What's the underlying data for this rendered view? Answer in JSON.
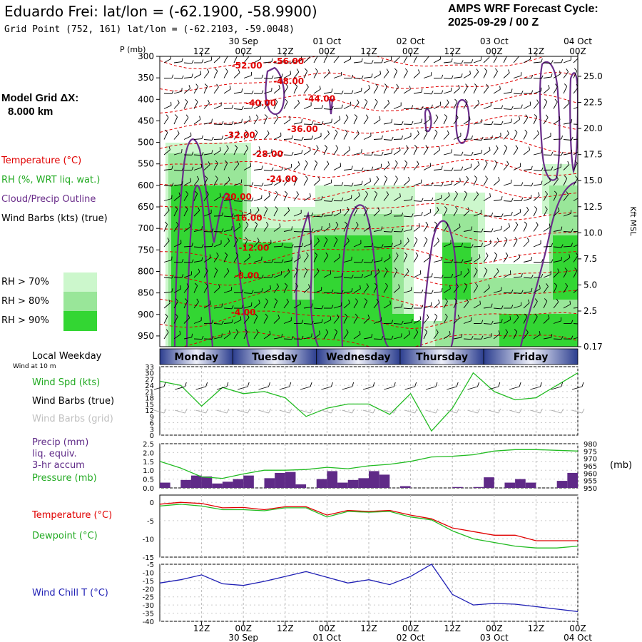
{
  "header": {
    "title": "Eduardo Frei:  lat/lon = (-62.1900, -58.9900)",
    "grid_point": "Grid Point (752, 161) lat/lon = (-62.2103, -59.0048)",
    "cycle_line1": "AMPS WRF Forecast Cycle:",
    "cycle_line2": "2025-09-29 / 00  Z"
  },
  "legend": {
    "model_grid_line1": "Model Grid ΔX:",
    "model_grid_line2": "8.000 km",
    "temperature": "Temperature (°C)",
    "rh": "RH (%, WRT liq. wat.)",
    "cloud": "Cloud/Precip Outline",
    "wind_barbs": "Wind Barbs (kts) (true)",
    "rh70": "RH > 70%",
    "rh80": "RH > 80%",
    "rh90": "RH > 90%",
    "colors": {
      "rh70": "#ccf7cc",
      "rh80": "#99e699",
      "rh90": "#33d633",
      "temperature": "#e00000",
      "cloud": "#6a2d8a",
      "precip": "#5f2a87",
      "wind_speed": "#22bb22",
      "wind_chill": "#1f1fb4"
    }
  },
  "axes": {
    "time_ticks": [
      "12Z",
      "00Z",
      "12Z",
      "00Z",
      "12Z",
      "00Z",
      "12Z",
      "00Z",
      "12Z",
      "00Z"
    ],
    "date_labels": [
      "30 Sep",
      "01 Oct",
      "02 Oct",
      "03 Oct",
      "04 Oct"
    ],
    "pressure_label": "P (mb)",
    "pressure_ticks": [
      "300",
      "350",
      "400",
      "450",
      "500",
      "550",
      "600",
      "650",
      "700",
      "750",
      "800",
      "850",
      "900",
      "950"
    ],
    "height_ticks": [
      "25.0",
      "22.5",
      "20.0",
      "17.5",
      "15.0",
      "12.5",
      "10.0",
      "7.5",
      "5.0",
      "2.5",
      "0.17"
    ],
    "height_unit": "Kft MSL"
  },
  "weekdays": {
    "label": "Local Weekday",
    "days": [
      "Monday",
      "Tuesday",
      "Wednesday",
      "Thursday",
      "Friday"
    ]
  },
  "panels": {
    "wind_caption": "Wind at 10 m",
    "wind_spd": "Wind Spd (kts)",
    "wind_barbs_true": "Wind Barbs (true)",
    "wind_barbs_grid": "Wind Barbs (grid)",
    "precip_l1": "Precip (mm)",
    "precip_l2": "liq. equiv.",
    "precip_l3": "3-hr accum",
    "pressure": "Pressure (mb)",
    "pressure_unit": "(mb)",
    "temperature": "Temperature (°C)",
    "dewpoint": "Dewpoint (°C)",
    "wind_chill": "Wind Chill T (°C)",
    "wind_ticks": [
      "33",
      "30",
      "27",
      "24",
      "21",
      "18",
      "15",
      "12",
      "9",
      "6",
      "3",
      "0"
    ],
    "precip_ticks": [
      "2.5",
      "2.0",
      "1.5",
      "1.0",
      "0.5",
      "0.0"
    ],
    "pres_ticks": [
      "980",
      "975",
      "970",
      "965",
      "960",
      "955",
      "950"
    ],
    "temp_ticks": [
      "0",
      "-5",
      "-10",
      "-15"
    ],
    "chill_ticks": [
      "-5",
      "-10",
      "-15",
      "-20",
      "-25",
      "-30",
      "-35",
      "-40"
    ]
  },
  "chart_data": [
    {
      "type": "heatmap",
      "name": "time-height cross section",
      "x_unit": "forecast hour",
      "xlim": [
        0,
        120
      ],
      "ylim": [
        300,
        975
      ],
      "temperature_labels": [
        {
          "text": "-56.00",
          "hour": 37,
          "p": 318
        },
        {
          "text": "-52.00",
          "hour": 25,
          "p": 328
        },
        {
          "text": "-48.00",
          "hour": 37,
          "p": 365
        },
        {
          "text": "-44.00",
          "hour": 46,
          "p": 405
        },
        {
          "text": "-40.00",
          "hour": 29,
          "p": 415
        },
        {
          "text": "-36.00",
          "hour": 41,
          "p": 476
        },
        {
          "text": "-32.00",
          "hour": 23,
          "p": 490
        },
        {
          "text": "-28.00",
          "hour": 31,
          "p": 534
        },
        {
          "text": "-24.00",
          "hour": 35,
          "p": 592
        },
        {
          "text": "-20.00",
          "hour": 22,
          "p": 633
        },
        {
          "text": "-16.00",
          "hour": 25,
          "p": 682
        },
        {
          "text": "-12.00",
          "hour": 27,
          "p": 752
        },
        {
          "text": "-8.00",
          "hour": 25,
          "p": 817
        },
        {
          "text": "-4.00",
          "hour": 24,
          "p": 902
        }
      ]
    },
    {
      "type": "line",
      "name": "wind speed 10m",
      "x_hours": [
        0,
        6,
        12,
        18,
        24,
        30,
        36,
        42,
        48,
        54,
        60,
        66,
        72,
        78,
        84,
        90,
        96,
        102,
        108,
        114,
        120
      ],
      "values": [
        26,
        24,
        14,
        23,
        20,
        21,
        18,
        9,
        13,
        15,
        15,
        10,
        20,
        2,
        13,
        30,
        21,
        17,
        18,
        24,
        30
      ],
      "ylim": [
        0,
        33
      ]
    },
    {
      "type": "bar",
      "name": "precip 3-hr accum",
      "bar_hours": [
        1.5,
        4.5,
        7.5,
        10.5,
        13.5,
        16.5,
        19.5,
        22.5,
        25.5,
        28.5,
        31.5,
        34.5,
        37.5,
        40.5,
        43.5,
        46.5,
        49.5,
        52.5,
        55.5,
        58.5,
        61.5,
        64.5,
        67.5,
        70.5,
        73.5,
        76.5,
        79.5,
        82.5,
        85.5,
        88.5,
        91.5,
        94.5,
        97.5,
        100.5,
        103.5,
        106.5,
        109.5,
        112.5,
        115.5,
        118.5
      ],
      "values": [
        0.3,
        0.0,
        0.45,
        0.7,
        0.65,
        0.25,
        0.35,
        0.5,
        0.7,
        0.0,
        0.55,
        0.85,
        0.9,
        0.2,
        0.0,
        0.5,
        0.95,
        0.3,
        0.45,
        0.55,
        0.95,
        0.75,
        0.0,
        0.1,
        0.0,
        0.0,
        0.0,
        0.0,
        0.05,
        0.0,
        0.05,
        0.6,
        0.0,
        0.3,
        0.5,
        0.3,
        0.0,
        0.0,
        0.4,
        0.85
      ],
      "ylim": [
        0,
        2.5
      ]
    },
    {
      "type": "line",
      "name": "surface pressure",
      "x_hours": [
        0,
        6,
        12,
        18,
        24,
        30,
        36,
        42,
        48,
        54,
        60,
        66,
        72,
        78,
        84,
        90,
        96,
        102,
        108,
        114,
        120
      ],
      "values": [
        968,
        963.5,
        957.5,
        956.5,
        959.5,
        962,
        962,
        962.5,
        964,
        963,
        965,
        966,
        968,
        971,
        971.5,
        972.5,
        975,
        976,
        976,
        975.5,
        975
      ],
      "ylim": [
        950,
        980
      ]
    },
    {
      "type": "line",
      "name": "temperature and dewpoint",
      "series": [
        {
          "name": "Temperature",
          "x_hours": [
            0,
            6,
            12,
            18,
            24,
            30,
            36,
            42,
            48,
            54,
            60,
            66,
            72,
            78,
            84,
            90,
            96,
            102,
            108,
            114,
            120
          ],
          "values": [
            -0.5,
            0,
            -0.3,
            -1.5,
            -1.4,
            -2,
            -1.2,
            -1.2,
            -3.5,
            -2.2,
            -2.5,
            -2.2,
            -3.5,
            -4.5,
            -7,
            -8,
            -9,
            -9,
            -10.5,
            -10.5,
            -10.5
          ]
        },
        {
          "name": "Dewpoint",
          "x_hours": [
            0,
            6,
            12,
            18,
            24,
            30,
            36,
            42,
            48,
            54,
            60,
            66,
            72,
            78,
            84,
            90,
            96,
            102,
            108,
            114,
            120
          ],
          "values": [
            -1,
            -0.5,
            -1,
            -2,
            -2,
            -2.3,
            -1.5,
            -1.5,
            -4,
            -2.5,
            -2.7,
            -2.5,
            -4,
            -4.8,
            -7.8,
            -10,
            -11,
            -12,
            -12.5,
            -12.5,
            -12
          ]
        }
      ],
      "ylim": [
        -15,
        2
      ]
    },
    {
      "type": "line",
      "name": "wind chill",
      "x_hours": [
        0,
        6,
        12,
        18,
        24,
        30,
        36,
        42,
        48,
        54,
        60,
        66,
        72,
        78,
        84,
        90,
        96,
        102,
        108,
        114,
        120
      ],
      "values": [
        -16.5,
        -14.5,
        -11.5,
        -17,
        -18,
        -15.5,
        -12.5,
        -9.5,
        -13,
        -16.5,
        -14.5,
        -17.5,
        -12.5,
        -5,
        -23.5,
        -30,
        -29,
        -29.5,
        -31,
        -32.5,
        -34
      ],
      "ylim": [
        -40,
        -5
      ]
    }
  ]
}
